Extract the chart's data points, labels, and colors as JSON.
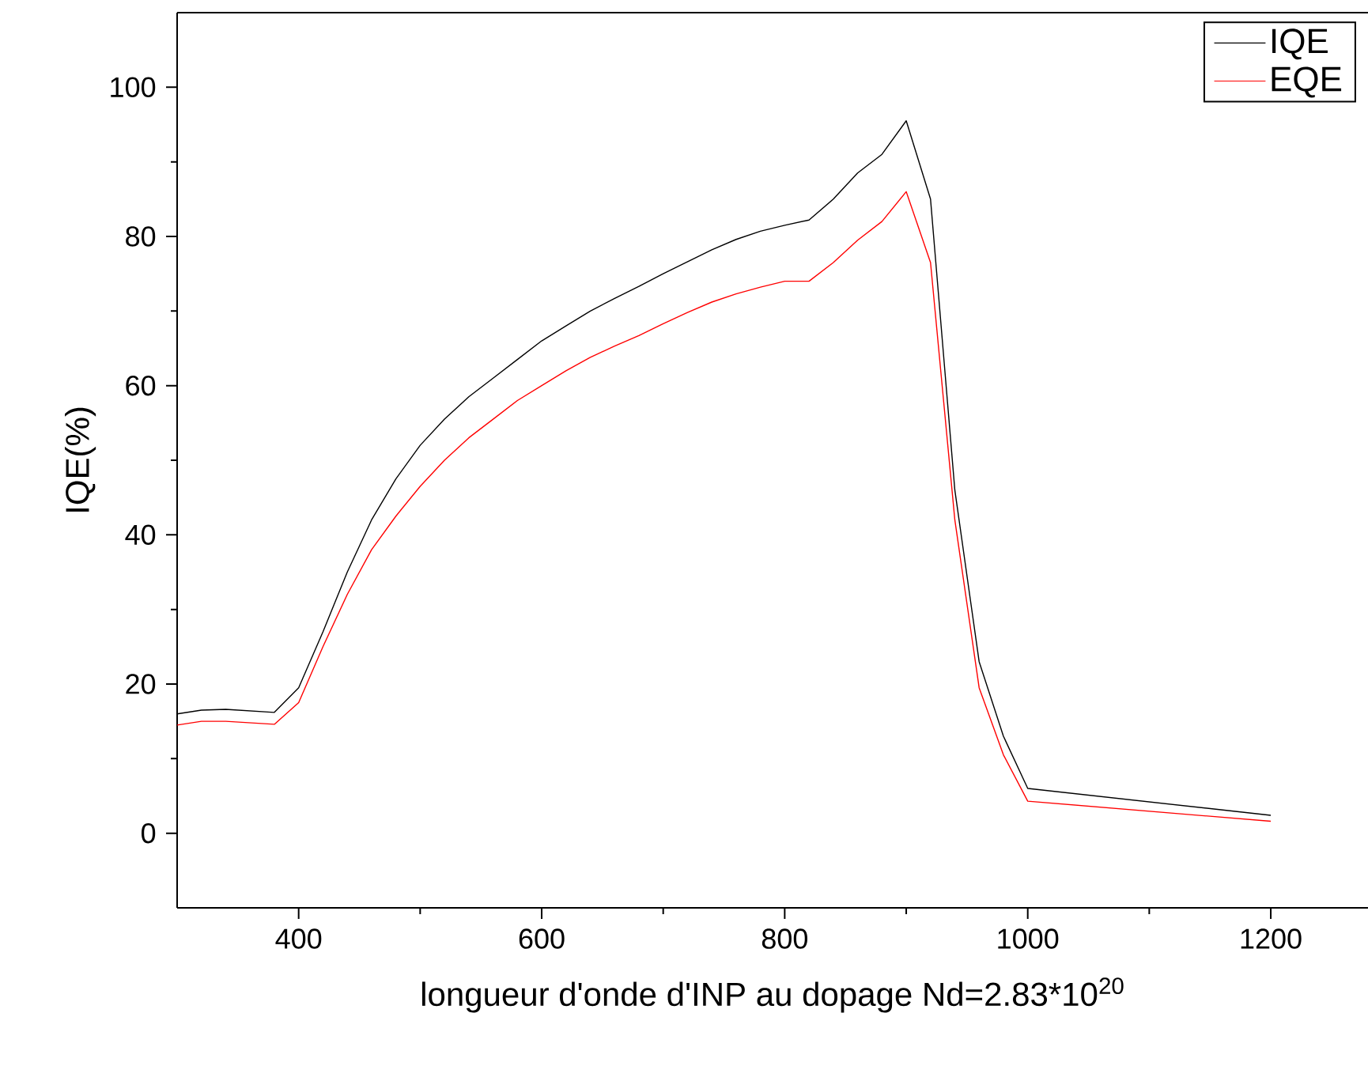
{
  "chart_data": {
    "type": "line",
    "xlabel": "longueur d'onde d'INP au dopage Nd=2.83*10$^{20}$",
    "ylabel": "IQE(%)",
    "x": [
      300,
      320,
      340,
      380,
      400,
      420,
      440,
      460,
      480,
      500,
      520,
      540,
      560,
      580,
      600,
      620,
      640,
      660,
      680,
      700,
      720,
      740,
      760,
      780,
      800,
      820,
      840,
      860,
      880,
      900,
      920,
      940,
      960,
      980,
      1000,
      1200
    ],
    "series": [
      {
        "name": "IQE",
        "color": "#000000",
        "values": [
          16,
          16.5,
          16.6,
          16.2,
          19.5,
          27,
          35,
          42,
          47.5,
          52,
          55.5,
          58.5,
          61,
          63.5,
          66,
          68,
          70,
          71.7,
          73.3,
          75,
          76.6,
          78.2,
          79.6,
          80.7,
          81.5,
          82.2,
          85,
          88.5,
          91,
          95.5,
          85,
          46,
          23,
          13,
          6,
          2.4
        ]
      },
      {
        "name": "EQE",
        "color": "#ff0000",
        "values": [
          14.5,
          15,
          15,
          14.6,
          17.5,
          25,
          32,
          38,
          42.5,
          46.5,
          50,
          53,
          55.5,
          58,
          60,
          62,
          63.8,
          65.3,
          66.7,
          68.3,
          69.8,
          71.2,
          72.3,
          73.2,
          74,
          74,
          76.5,
          79.5,
          82,
          86,
          76.5,
          42,
          19.5,
          10.5,
          4.3,
          1.6
        ]
      }
    ],
    "xlim": [
      300,
      1280
    ],
    "ylim": [
      -10,
      110
    ],
    "xticks": [
      400,
      600,
      800,
      1000,
      1200
    ],
    "yticks": [
      0,
      20,
      40,
      60,
      80,
      100
    ],
    "legend": "top right",
    "marker": "none",
    "line_style": "solid",
    "grid": false
  }
}
